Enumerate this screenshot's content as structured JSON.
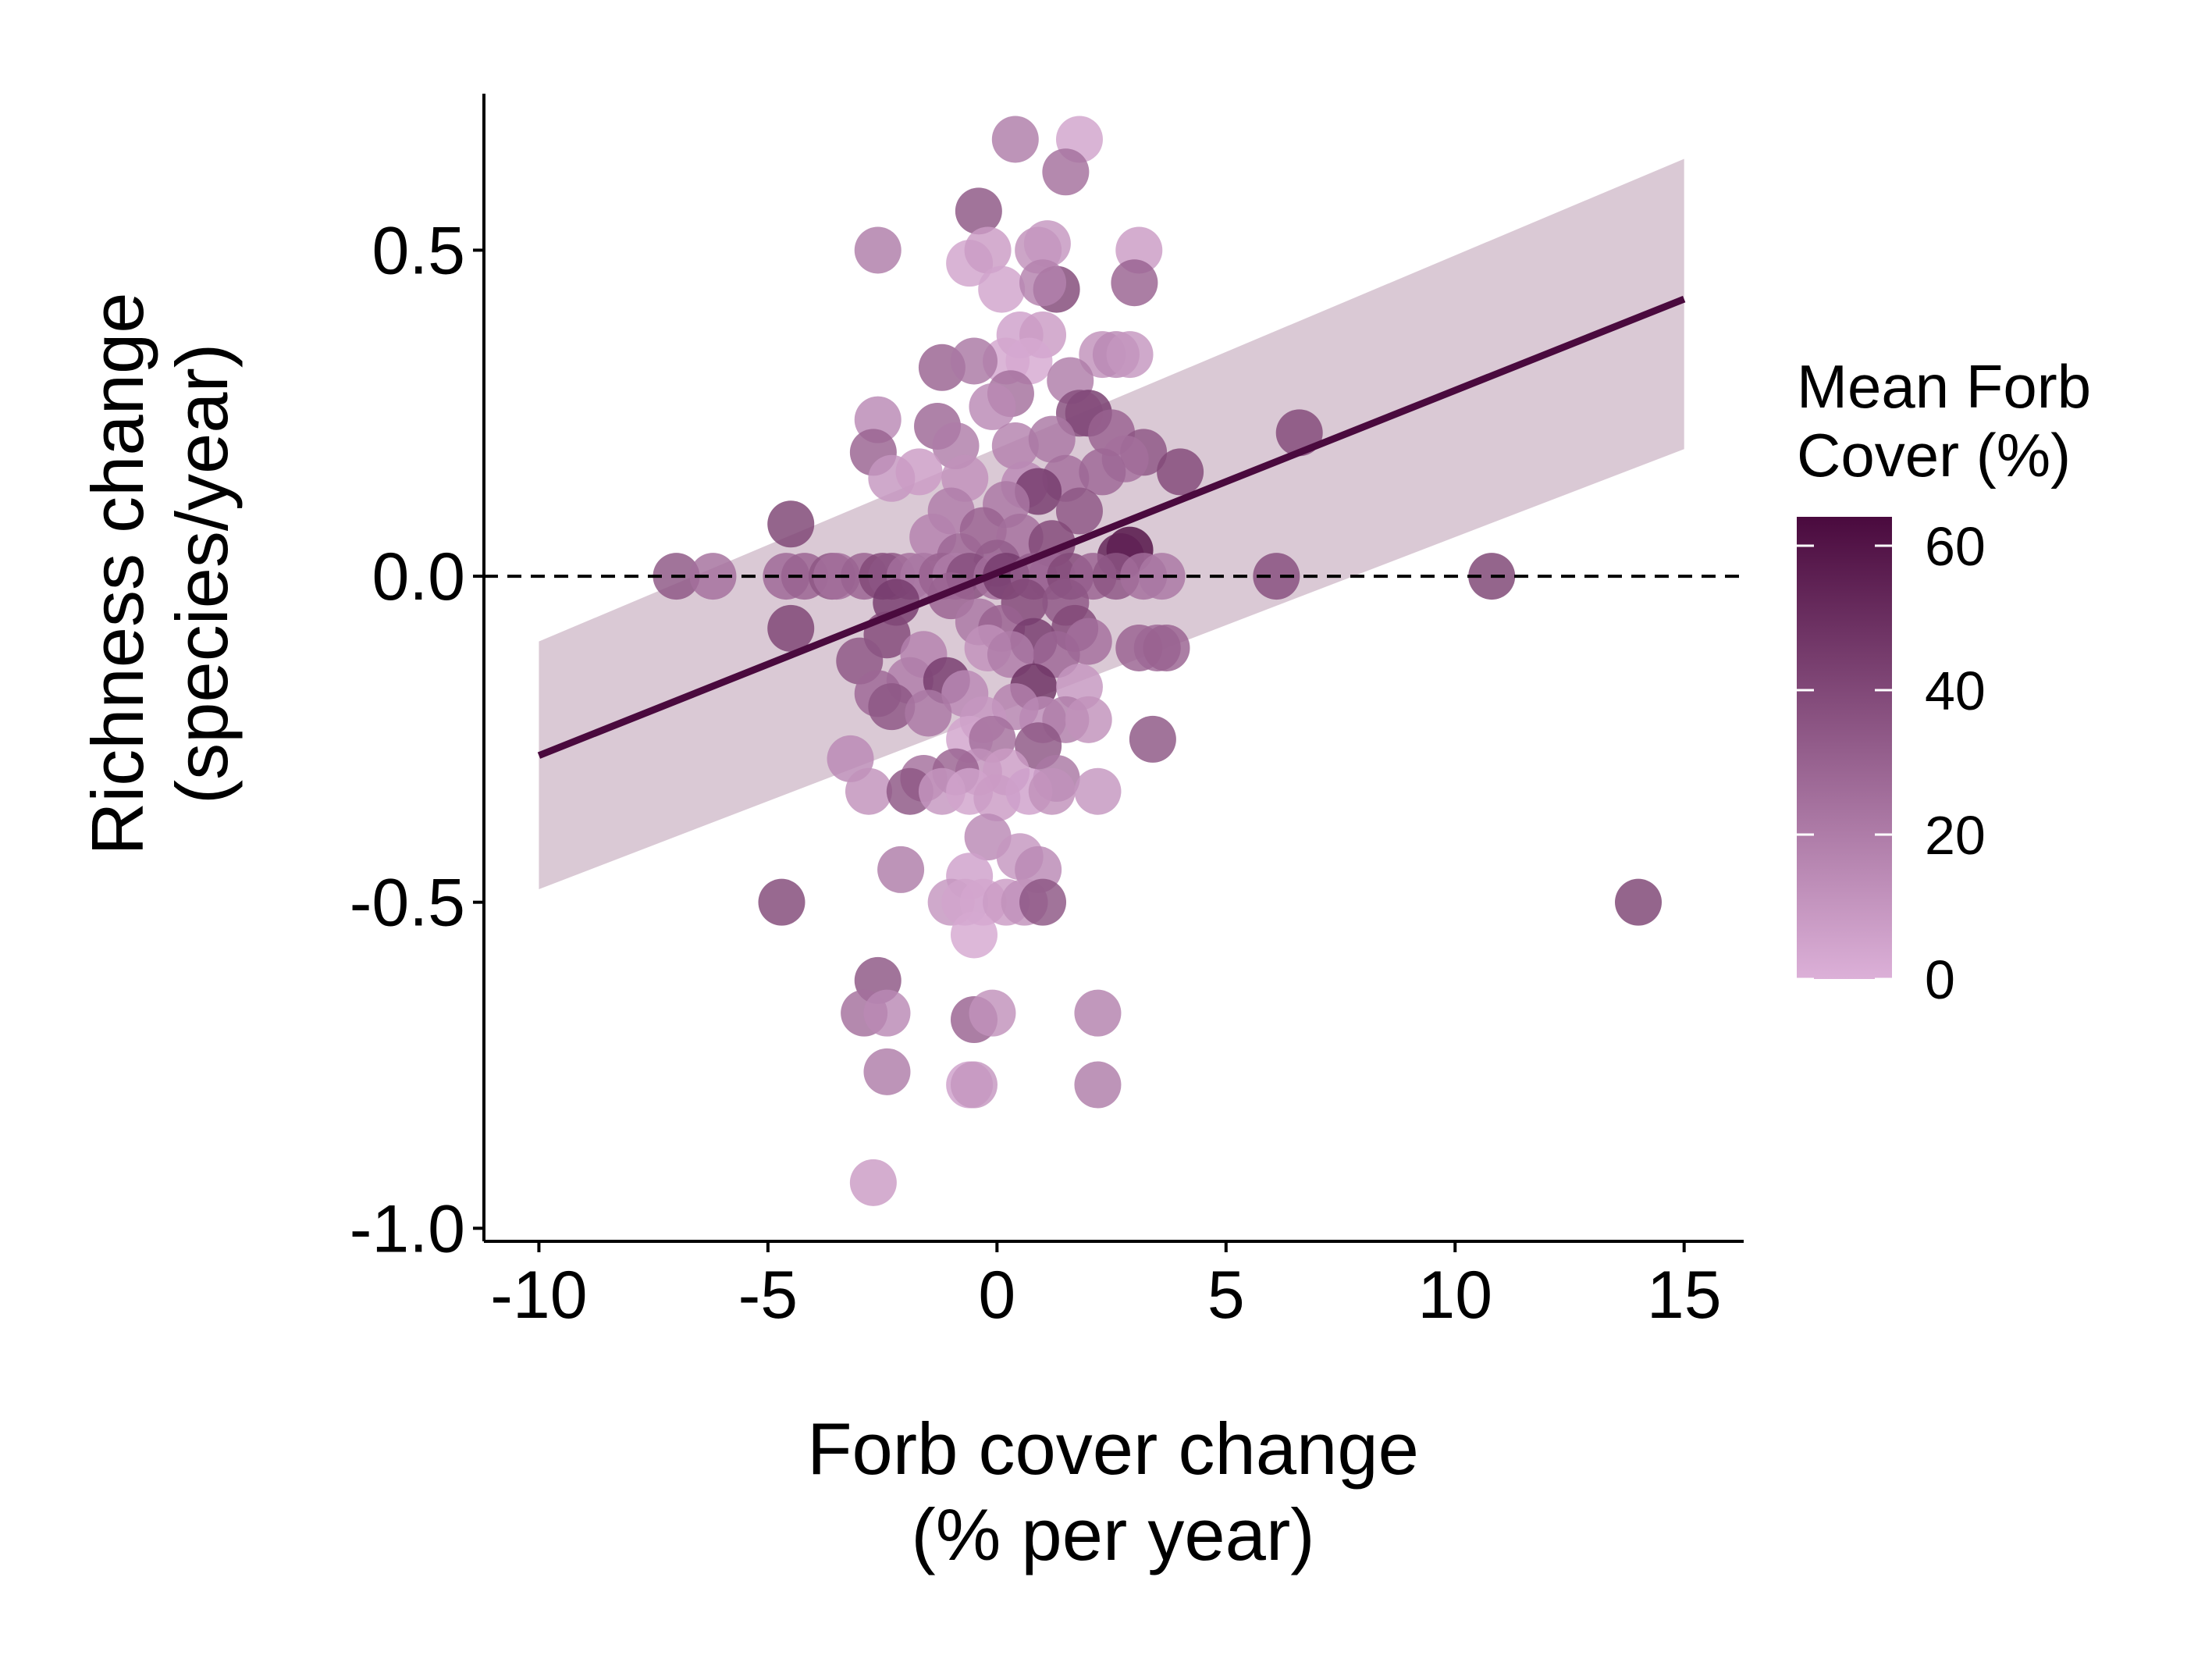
{
  "chart_data": {
    "type": "scatter",
    "xlabel": [
      "Forb cover change",
      "(% per year)"
    ],
    "ylabel": [
      "Richness change",
      "(species/year)"
    ],
    "xlim": [
      -11.2,
      16.3
    ],
    "ylim": [
      -1.02,
      0.74
    ],
    "xticks": [
      -10,
      -5,
      0,
      5,
      10,
      15
    ],
    "xtick_labels": [
      "-10",
      "-5",
      "0",
      "5",
      "10",
      "15"
    ],
    "yticks": [
      0.5,
      0.0,
      -0.5,
      -1.0
    ],
    "ytick_labels": [
      "0.5",
      "0.0",
      "-0.5",
      "-1.0"
    ],
    "grid": false,
    "reference_line": {
      "y": 0,
      "style": "dashed",
      "color": "#000000"
    },
    "regression": {
      "x": [
        -10,
        15
      ],
      "y": [
        -0.275,
        0.425
      ],
      "ci_lower": [
        -0.48,
        0.195
      ],
      "ci_upper": [
        -0.1,
        0.64
      ],
      "line_color": "#4a0a3e",
      "band_color": "#d6c3d0"
    },
    "colorbar": {
      "title": [
        "Mean Forb",
        "Cover (%)"
      ],
      "min": 0,
      "max": 64,
      "ticks": [
        0,
        20,
        40,
        60
      ],
      "tick_labels": [
        "0",
        "20",
        "40",
        "60"
      ],
      "low_color": "#dcb0d8",
      "high_color": "#4a0a3e",
      "position": "right"
    },
    "points": [
      {
        "x": 0.4,
        "y": 0.67,
        "c": 20
      },
      {
        "x": 1.8,
        "y": 0.67,
        "c": 5
      },
      {
        "x": 1.5,
        "y": 0.62,
        "c": 25
      },
      {
        "x": -0.4,
        "y": 0.56,
        "c": 35
      },
      {
        "x": -2.6,
        "y": 0.5,
        "c": 20
      },
      {
        "x": -0.6,
        "y": 0.48,
        "c": 5
      },
      {
        "x": -0.2,
        "y": 0.5,
        "c": 8
      },
      {
        "x": 0.9,
        "y": 0.5,
        "c": 12
      },
      {
        "x": 1.1,
        "y": 0.51,
        "c": 10
      },
      {
        "x": 3.1,
        "y": 0.5,
        "c": 8
      },
      {
        "x": 3.0,
        "y": 0.45,
        "c": 30
      },
      {
        "x": 1.3,
        "y": 0.44,
        "c": 40
      },
      {
        "x": 0.1,
        "y": 0.44,
        "c": 5
      },
      {
        "x": 1.0,
        "y": 0.45,
        "c": 18
      },
      {
        "x": 0.5,
        "y": 0.37,
        "c": 6
      },
      {
        "x": 1.0,
        "y": 0.37,
        "c": 8
      },
      {
        "x": 0.2,
        "y": 0.33,
        "c": 4
      },
      {
        "x": 0.7,
        "y": 0.33,
        "c": 3
      },
      {
        "x": -1.2,
        "y": 0.32,
        "c": 30
      },
      {
        "x": 2.3,
        "y": 0.34,
        "c": 12
      },
      {
        "x": 2.6,
        "y": 0.34,
        "c": 15
      },
      {
        "x": 2.9,
        "y": 0.34,
        "c": 10
      },
      {
        "x": -0.5,
        "y": 0.33,
        "c": 22
      },
      {
        "x": 1.6,
        "y": 0.3,
        "c": 20
      },
      {
        "x": 0.3,
        "y": 0.28,
        "c": 25
      },
      {
        "x": -0.1,
        "y": 0.26,
        "c": 15
      },
      {
        "x": 2.0,
        "y": 0.25,
        "c": 45
      },
      {
        "x": 1.8,
        "y": 0.25,
        "c": 38
      },
      {
        "x": -2.6,
        "y": 0.24,
        "c": 15
      },
      {
        "x": -1.3,
        "y": 0.23,
        "c": 28
      },
      {
        "x": 2.5,
        "y": 0.22,
        "c": 30
      },
      {
        "x": 6.6,
        "y": 0.22,
        "c": 40
      },
      {
        "x": -0.9,
        "y": 0.2,
        "c": 20
      },
      {
        "x": 0.4,
        "y": 0.2,
        "c": 18
      },
      {
        "x": 1.2,
        "y": 0.21,
        "c": 22
      },
      {
        "x": -2.7,
        "y": 0.19,
        "c": 30
      },
      {
        "x": 3.2,
        "y": 0.19,
        "c": 35
      },
      {
        "x": 2.8,
        "y": 0.18,
        "c": 25
      },
      {
        "x": 4.0,
        "y": 0.16,
        "c": 40
      },
      {
        "x": -2.3,
        "y": 0.15,
        "c": 10
      },
      {
        "x": -1.7,
        "y": 0.16,
        "c": 8
      },
      {
        "x": -0.7,
        "y": 0.15,
        "c": 12
      },
      {
        "x": 1.5,
        "y": 0.15,
        "c": 25
      },
      {
        "x": 2.3,
        "y": 0.16,
        "c": 28
      },
      {
        "x": 0.6,
        "y": 0.14,
        "c": 15
      },
      {
        "x": 0.9,
        "y": 0.13,
        "c": 45
      },
      {
        "x": -1.0,
        "y": 0.1,
        "c": 20
      },
      {
        "x": 0.2,
        "y": 0.11,
        "c": 22
      },
      {
        "x": 1.8,
        "y": 0.1,
        "c": 35
      },
      {
        "x": -0.3,
        "y": 0.07,
        "c": 30
      },
      {
        "x": -1.4,
        "y": 0.06,
        "c": 18
      },
      {
        "x": 0.5,
        "y": 0.06,
        "c": 25
      },
      {
        "x": 1.2,
        "y": 0.05,
        "c": 40
      },
      {
        "x": -4.5,
        "y": 0.08,
        "c": 42
      },
      {
        "x": 2.9,
        "y": 0.04,
        "c": 62
      },
      {
        "x": 2.7,
        "y": 0.03,
        "c": 55
      },
      {
        "x": -0.8,
        "y": 0.03,
        "c": 28
      },
      {
        "x": 0.0,
        "y": 0.02,
        "c": 32
      },
      {
        "x": -7.0,
        "y": 0.0,
        "c": 35
      },
      {
        "x": -6.2,
        "y": 0.0,
        "c": 25
      },
      {
        "x": -4.6,
        "y": 0.0,
        "c": 28
      },
      {
        "x": -4.2,
        "y": 0.0,
        "c": 30
      },
      {
        "x": -3.6,
        "y": 0.0,
        "c": 35
      },
      {
        "x": -3.5,
        "y": 0.0,
        "c": 25
      },
      {
        "x": -2.9,
        "y": 0.0,
        "c": 30
      },
      {
        "x": -2.5,
        "y": 0.0,
        "c": 40
      },
      {
        "x": -2.3,
        "y": 0.0,
        "c": 35
      },
      {
        "x": -1.9,
        "y": 0.0,
        "c": 25
      },
      {
        "x": -1.6,
        "y": 0.0,
        "c": 22
      },
      {
        "x": -1.2,
        "y": 0.0,
        "c": 30
      },
      {
        "x": -0.9,
        "y": 0.0,
        "c": 20
      },
      {
        "x": -0.6,
        "y": 0.0,
        "c": 38
      },
      {
        "x": 0.0,
        "y": 0.0,
        "c": 25
      },
      {
        "x": 0.2,
        "y": 0.0,
        "c": 45
      },
      {
        "x": 0.8,
        "y": 0.0,
        "c": 32
      },
      {
        "x": 1.2,
        "y": 0.0,
        "c": 28
      },
      {
        "x": 1.6,
        "y": 0.0,
        "c": 40
      },
      {
        "x": 2.1,
        "y": 0.0,
        "c": 30
      },
      {
        "x": 2.6,
        "y": 0.0,
        "c": 35
      },
      {
        "x": 3.2,
        "y": 0.0,
        "c": 25
      },
      {
        "x": 3.6,
        "y": 0.0,
        "c": 22
      },
      {
        "x": 6.1,
        "y": 0.0,
        "c": 38
      },
      {
        "x": 10.8,
        "y": 0.0,
        "c": 42
      },
      {
        "x": -2.2,
        "y": -0.04,
        "c": 45
      },
      {
        "x": -1.0,
        "y": -0.03,
        "c": 30
      },
      {
        "x": 0.6,
        "y": -0.04,
        "c": 40
      },
      {
        "x": 1.5,
        "y": -0.04,
        "c": 35
      },
      {
        "x": -4.5,
        "y": -0.08,
        "c": 42
      },
      {
        "x": -2.4,
        "y": -0.09,
        "c": 40
      },
      {
        "x": -0.4,
        "y": -0.07,
        "c": 22
      },
      {
        "x": 0.1,
        "y": -0.08,
        "c": 30
      },
      {
        "x": 0.8,
        "y": -0.1,
        "c": 45
      },
      {
        "x": 1.7,
        "y": -0.08,
        "c": 40
      },
      {
        "x": 2.0,
        "y": -0.1,
        "c": 25
      },
      {
        "x": -1.6,
        "y": -0.12,
        "c": 18
      },
      {
        "x": -0.2,
        "y": -0.11,
        "c": 12
      },
      {
        "x": 0.3,
        "y": -0.12,
        "c": 20
      },
      {
        "x": 1.3,
        "y": -0.12,
        "c": 28
      },
      {
        "x": -3.0,
        "y": -0.13,
        "c": 35
      },
      {
        "x": 3.1,
        "y": -0.11,
        "c": 30
      },
      {
        "x": 3.5,
        "y": -0.11,
        "c": 28
      },
      {
        "x": 3.7,
        "y": -0.11,
        "c": 30
      },
      {
        "x": -1.9,
        "y": -0.16,
        "c": 20
      },
      {
        "x": -1.1,
        "y": -0.16,
        "c": 45
      },
      {
        "x": 0.8,
        "y": -0.17,
        "c": 50
      },
      {
        "x": 1.8,
        "y": -0.17,
        "c": 10
      },
      {
        "x": -2.6,
        "y": -0.18,
        "c": 28
      },
      {
        "x": -0.7,
        "y": -0.18,
        "c": 15
      },
      {
        "x": 0.4,
        "y": -0.2,
        "c": 18
      },
      {
        "x": -2.3,
        "y": -0.2,
        "c": 35
      },
      {
        "x": -1.5,
        "y": -0.21,
        "c": 22
      },
      {
        "x": -0.3,
        "y": -0.22,
        "c": 10
      },
      {
        "x": 1.0,
        "y": -0.22,
        "c": 15
      },
      {
        "x": 1.5,
        "y": -0.22,
        "c": 20
      },
      {
        "x": 2.0,
        "y": -0.22,
        "c": 12
      },
      {
        "x": -0.6,
        "y": -0.25,
        "c": 5
      },
      {
        "x": -0.1,
        "y": -0.25,
        "c": 25
      },
      {
        "x": 0.9,
        "y": -0.26,
        "c": 35
      },
      {
        "x": 3.4,
        "y": -0.25,
        "c": 35
      },
      {
        "x": -3.2,
        "y": -0.28,
        "c": 15
      },
      {
        "x": -0.4,
        "y": -0.3,
        "c": 12
      },
      {
        "x": 0.2,
        "y": -0.3,
        "c": 8
      },
      {
        "x": -1.6,
        "y": -0.31,
        "c": 25
      },
      {
        "x": -0.9,
        "y": -0.3,
        "c": 30
      },
      {
        "x": 1.3,
        "y": -0.31,
        "c": 22
      },
      {
        "x": -2.8,
        "y": -0.33,
        "c": 12
      },
      {
        "x": -1.9,
        "y": -0.33,
        "c": 35
      },
      {
        "x": -1.2,
        "y": -0.33,
        "c": 10
      },
      {
        "x": -0.6,
        "y": -0.33,
        "c": 5
      },
      {
        "x": 0.0,
        "y": -0.34,
        "c": 8
      },
      {
        "x": 0.7,
        "y": -0.33,
        "c": 6
      },
      {
        "x": 1.2,
        "y": -0.33,
        "c": 12
      },
      {
        "x": 2.2,
        "y": -0.33,
        "c": 10
      },
      {
        "x": -0.2,
        "y": -0.4,
        "c": 15
      },
      {
        "x": -2.1,
        "y": -0.45,
        "c": 20
      },
      {
        "x": 0.5,
        "y": -0.43,
        "c": 10
      },
      {
        "x": 0.9,
        "y": -0.45,
        "c": 15
      },
      {
        "x": -0.6,
        "y": -0.46,
        "c": 6
      },
      {
        "x": -4.7,
        "y": -0.5,
        "c": 40
      },
      {
        "x": -1.0,
        "y": -0.5,
        "c": 10
      },
      {
        "x": -0.7,
        "y": -0.5,
        "c": 5
      },
      {
        "x": -0.3,
        "y": -0.5,
        "c": 4
      },
      {
        "x": 0.2,
        "y": -0.5,
        "c": 8
      },
      {
        "x": 0.6,
        "y": -0.5,
        "c": 12
      },
      {
        "x": 1.0,
        "y": -0.5,
        "c": 35
      },
      {
        "x": 14.0,
        "y": -0.5,
        "c": 42
      },
      {
        "x": -0.5,
        "y": -0.55,
        "c": 3
      },
      {
        "x": -2.6,
        "y": -0.62,
        "c": 35
      },
      {
        "x": -2.9,
        "y": -0.67,
        "c": 25
      },
      {
        "x": -2.4,
        "y": -0.67,
        "c": 15
      },
      {
        "x": -0.5,
        "y": -0.68,
        "c": 30
      },
      {
        "x": -0.1,
        "y": -0.67,
        "c": 12
      },
      {
        "x": 2.2,
        "y": -0.67,
        "c": 18
      },
      {
        "x": -2.4,
        "y": -0.76,
        "c": 20
      },
      {
        "x": -0.6,
        "y": -0.78,
        "c": 6
      },
      {
        "x": -0.5,
        "y": -0.78,
        "c": 10
      },
      {
        "x": 2.2,
        "y": -0.78,
        "c": 20
      },
      {
        "x": -2.7,
        "y": -0.93,
        "c": 8
      }
    ]
  }
}
